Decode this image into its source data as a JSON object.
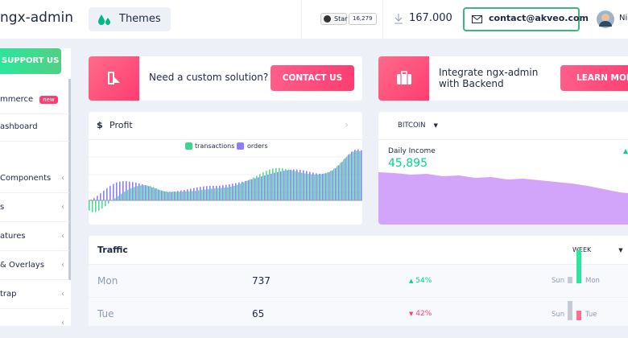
{
  "header": {
    "brand": "ngx-admin",
    "theme": "Themes",
    "github": {
      "label": "Star",
      "count": "16,279"
    },
    "downloads": "167.000",
    "email": "contact@akveo.com",
    "user": "Nic"
  },
  "sidebar": {
    "button": "SUPPORT US",
    "items": [
      {
        "label": "mmerce",
        "badge": "new"
      },
      {
        "label": "ashboard"
      },
      {
        "label": "Components"
      },
      {
        "label": "s"
      },
      {
        "label": "atures"
      },
      {
        "label": "& Overlays"
      },
      {
        "label": "trap"
      }
    ]
  },
  "promo": [
    {
      "text": "Need a custom solution?",
      "button": "CONTACT US"
    },
    {
      "text": "Integrate ngx-admin with Backend",
      "button": "LEARN MORE"
    }
  ],
  "profit": {
    "icon": "$",
    "title": "Profit",
    "legend": [
      "transactions",
      "orders"
    ]
  },
  "bitcoin": {
    "currency": "BITCOIN",
    "label": "Daily Income",
    "value": "45,895"
  },
  "traffic": {
    "title": "Traffic",
    "period": "WEEK",
    "rows": [
      {
        "day": "Mon",
        "value": "737",
        "delta": "54%",
        "compare": [
          "Sun",
          "Mon"
        ]
      },
      {
        "day": "Tue",
        "value": "65",
        "delta": "42%",
        "compare": [
          "Sun",
          "Tue"
        ]
      }
    ]
  }
}
